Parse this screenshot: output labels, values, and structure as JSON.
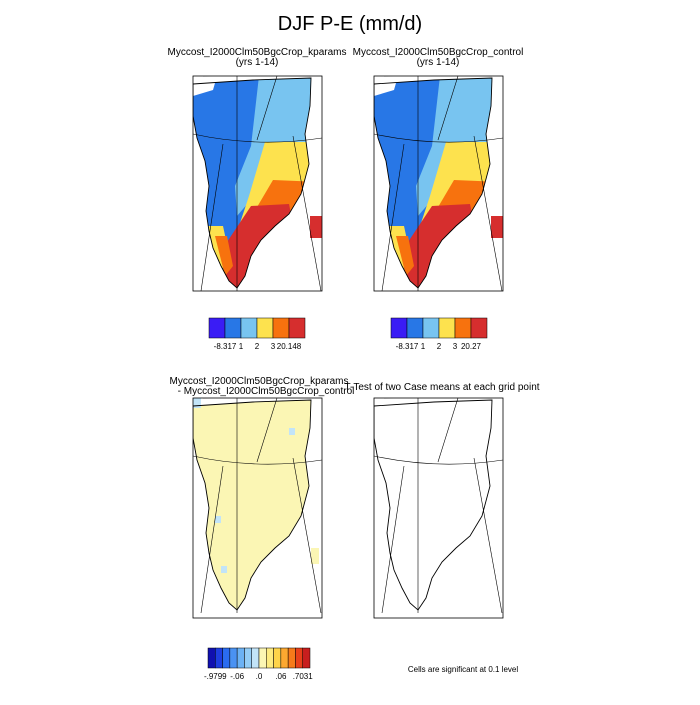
{
  "title": "DJF P-E (mm/d)",
  "panels": [
    {
      "title": "Myccost_I2000Clm50BgcCrop_kparams",
      "subtitle": "(yrs 1-14)",
      "colorbar": {
        "colors": [
          "#3a1cf5",
          "#2877e6",
          "#78c4f0",
          "#fde24e",
          "#f7720e",
          "#d62e2e"
        ],
        "labels": [
          "-8.317",
          "1",
          "2",
          "3",
          "20.148"
        ]
      }
    },
    {
      "title": "Myccost_I2000Clm50BgcCrop_control",
      "subtitle": "(yrs 1-14)",
      "colorbar": {
        "colors": [
          "#3a1cf5",
          "#2877e6",
          "#78c4f0",
          "#fde24e",
          "#f7720e",
          "#d62e2e"
        ],
        "labels": [
          "-8.317",
          "1",
          "2",
          "3",
          "20.27"
        ]
      }
    },
    {
      "title": "Myccost_I2000Clm50BgcCrop_kparams",
      "subtitle": "- Myccost_I2000Clm50BgcCrop_control",
      "colorbar": {
        "colors": [
          "#1010b0",
          "#1e3ee0",
          "#2a6cf0",
          "#4a92f2",
          "#6cb2f4",
          "#94cdf6",
          "#c2e4f8",
          "#fbf6b4",
          "#fdeb80",
          "#fed44a",
          "#fca830",
          "#f67a1a",
          "#e8401a",
          "#c81e1e"
        ],
        "labels": [
          "-.9799",
          "-.06",
          ".0",
          ".06",
          ".7031"
        ]
      }
    },
    {
      "title": "T-Test of two Case means at each grid point",
      "note": "Cells are significant at 0.1 level"
    }
  ]
}
